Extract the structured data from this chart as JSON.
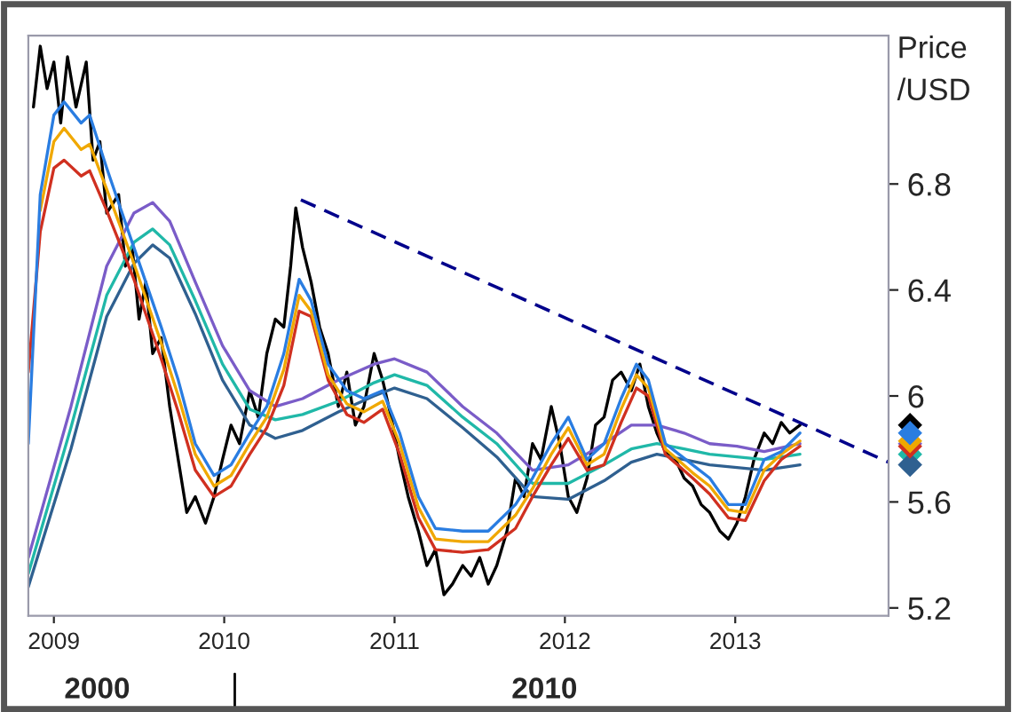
{
  "chart_data": {
    "type": "line",
    "ylabel": "Price\n/USD",
    "annotations": [
      "2000",
      "2010"
    ],
    "xlim": [
      2008.85,
      2013.9
    ],
    "ylim": [
      5.17,
      7.36
    ],
    "xticks": [
      2009,
      2010,
      2011,
      2012,
      2013
    ],
    "yticks": [
      5.2,
      5.6,
      {
        "value": 6.0,
        "label": "6"
      },
      6.4,
      6.8
    ],
    "grid": false,
    "legend": false,
    "marker": "none",
    "line_style": "solid",
    "series": [
      {
        "color": "#000000",
        "x": [
          2008.88,
          2008.92,
          2008.96,
          2009.0,
          2009.04,
          2009.08,
          2009.13,
          2009.19,
          2009.23,
          2009.27,
          2009.31,
          2009.38,
          2009.42,
          2009.46,
          2009.5,
          2009.54,
          2009.58,
          2009.63,
          2009.68,
          2009.73,
          2009.78,
          2009.83,
          2009.89,
          2009.94,
          2009.99,
          2010.04,
          2010.09,
          2010.15,
          2010.2,
          2010.25,
          2010.3,
          2010.35,
          2010.39,
          2010.42,
          2010.46,
          2010.51,
          2010.56,
          2010.61,
          2010.67,
          2010.72,
          2010.77,
          2010.82,
          2010.88,
          2010.93,
          2010.98,
          2011.03,
          2011.08,
          2011.14,
          2011.19,
          2011.24,
          2011.29,
          2011.34,
          2011.4,
          2011.45,
          2011.5,
          2011.55,
          2011.6,
          2011.66,
          2011.71,
          2011.76,
          2011.81,
          2011.86,
          2011.92,
          2011.97,
          2012.02,
          2012.07,
          2012.13,
          2012.18,
          2012.23,
          2012.28,
          2012.33,
          2012.39,
          2012.44,
          2012.49,
          2012.54,
          2012.59,
          2012.65,
          2012.7,
          2012.75,
          2012.8,
          2012.85,
          2012.91,
          2012.96,
          2013.01,
          2013.06,
          2013.11,
          2013.17,
          2013.22,
          2013.27,
          2013.32,
          2013.38
        ],
        "values": [
          7.09,
          7.32,
          7.16,
          7.26,
          7.03,
          7.28,
          7.09,
          7.26,
          6.89,
          6.96,
          6.69,
          6.76,
          6.49,
          6.56,
          6.29,
          6.43,
          6.16,
          6.22,
          5.96,
          5.76,
          5.56,
          5.62,
          5.52,
          5.62,
          5.76,
          5.89,
          5.82,
          6.02,
          5.92,
          6.16,
          6.29,
          6.26,
          6.49,
          6.71,
          6.56,
          6.43,
          6.26,
          6.16,
          5.96,
          6.09,
          5.89,
          5.96,
          6.16,
          6.06,
          5.92,
          5.76,
          5.62,
          5.49,
          5.36,
          5.42,
          5.25,
          5.29,
          5.36,
          5.32,
          5.39,
          5.29,
          5.36,
          5.49,
          5.69,
          5.62,
          5.82,
          5.76,
          5.96,
          5.82,
          5.62,
          5.56,
          5.69,
          5.89,
          5.92,
          6.06,
          6.09,
          6.02,
          6.12,
          5.96,
          5.86,
          5.79,
          5.76,
          5.69,
          5.66,
          5.59,
          5.56,
          5.49,
          5.46,
          5.52,
          5.62,
          5.76,
          5.86,
          5.82,
          5.9,
          5.86,
          5.89
        ]
      },
      {
        "color": "#7a5cc8",
        "x": [
          2008.85,
          2009.1,
          2009.31,
          2009.47,
          2009.58,
          2009.68,
          2009.83,
          2009.99,
          2010.15,
          2010.3,
          2010.46,
          2010.67,
          2010.88,
          2011.0,
          2011.19,
          2011.4,
          2011.6,
          2011.81,
          2012.02,
          2012.23,
          2012.39,
          2012.54,
          2012.7,
          2012.85,
          2013.01,
          2013.17,
          2013.38
        ],
        "values": [
          5.39,
          5.96,
          6.49,
          6.69,
          6.73,
          6.66,
          6.43,
          6.19,
          6.02,
          5.96,
          5.99,
          6.06,
          6.12,
          6.14,
          6.09,
          5.96,
          5.86,
          5.72,
          5.74,
          5.82,
          5.89,
          5.89,
          5.86,
          5.82,
          5.81,
          5.79,
          5.82
        ]
      },
      {
        "color": "#20b8a8",
        "x": [
          2008.85,
          2009.1,
          2009.31,
          2009.47,
          2009.58,
          2009.68,
          2009.83,
          2009.99,
          2010.15,
          2010.3,
          2010.46,
          2010.67,
          2010.88,
          2011.0,
          2011.19,
          2011.4,
          2011.6,
          2011.81,
          2012.02,
          2012.23,
          2012.39,
          2012.54,
          2012.7,
          2012.85,
          2013.01,
          2013.17,
          2013.38
        ],
        "values": [
          5.33,
          5.88,
          6.38,
          6.58,
          6.63,
          6.57,
          6.36,
          6.12,
          5.95,
          5.91,
          5.93,
          5.98,
          6.05,
          6.08,
          6.04,
          5.92,
          5.82,
          5.67,
          5.67,
          5.74,
          5.8,
          5.82,
          5.8,
          5.78,
          5.77,
          5.76,
          5.78
        ]
      },
      {
        "color": "#2f6090",
        "x": [
          2008.85,
          2009.1,
          2009.31,
          2009.47,
          2009.58,
          2009.68,
          2009.83,
          2009.99,
          2010.15,
          2010.3,
          2010.46,
          2010.67,
          2010.88,
          2011.0,
          2011.19,
          2011.4,
          2011.6,
          2011.81,
          2012.02,
          2012.23,
          2012.39,
          2012.54,
          2012.7,
          2012.85,
          2013.01,
          2013.17,
          2013.38
        ],
        "values": [
          5.28,
          5.8,
          6.3,
          6.5,
          6.57,
          6.52,
          6.31,
          6.06,
          5.89,
          5.84,
          5.87,
          5.94,
          6.0,
          6.03,
          5.99,
          5.88,
          5.77,
          5.62,
          5.61,
          5.68,
          5.75,
          5.78,
          5.76,
          5.74,
          5.73,
          5.72,
          5.74
        ]
      },
      {
        "color": "#d03020",
        "x": [
          2008.85,
          2008.92,
          2009.0,
          2009.06,
          2009.16,
          2009.21,
          2009.31,
          2009.47,
          2009.63,
          2009.73,
          2009.83,
          2009.94,
          2010.04,
          2010.15,
          2010.25,
          2010.35,
          2010.44,
          2010.51,
          2010.61,
          2010.72,
          2010.82,
          2010.93,
          2011.03,
          2011.14,
          2011.24,
          2011.4,
          2011.55,
          2011.71,
          2011.81,
          2011.92,
          2012.02,
          2012.13,
          2012.23,
          2012.33,
          2012.42,
          2012.49,
          2012.59,
          2012.75,
          2012.85,
          2012.96,
          2013.06,
          2013.17,
          2013.27,
          2013.38
        ],
        "values": [
          6.09,
          6.62,
          6.86,
          6.89,
          6.83,
          6.85,
          6.7,
          6.44,
          6.14,
          5.94,
          5.72,
          5.62,
          5.66,
          5.78,
          5.88,
          6.04,
          6.32,
          6.3,
          6.06,
          5.93,
          5.9,
          5.95,
          5.78,
          5.54,
          5.42,
          5.41,
          5.42,
          5.5,
          5.62,
          5.74,
          5.84,
          5.72,
          5.74,
          5.9,
          6.03,
          6.0,
          5.78,
          5.69,
          5.63,
          5.54,
          5.53,
          5.68,
          5.76,
          5.81
        ]
      },
      {
        "color": "#f0a800",
        "x": [
          2008.92,
          2009.0,
          2009.06,
          2009.16,
          2009.21,
          2009.31,
          2009.47,
          2009.63,
          2009.73,
          2009.83,
          2009.94,
          2010.04,
          2010.15,
          2010.25,
          2010.35,
          2010.44,
          2010.51,
          2010.61,
          2010.72,
          2010.82,
          2010.93,
          2011.03,
          2011.14,
          2011.24,
          2011.4,
          2011.55,
          2011.71,
          2011.81,
          2011.92,
          2012.02,
          2012.13,
          2012.23,
          2012.33,
          2012.42,
          2012.49,
          2012.59,
          2012.75,
          2012.85,
          2012.96,
          2013.06,
          2013.17,
          2013.27,
          2013.38
        ],
        "values": [
          6.7,
          6.96,
          7.01,
          6.93,
          6.95,
          6.78,
          6.5,
          6.2,
          6.0,
          5.78,
          5.66,
          5.7,
          5.82,
          5.92,
          6.1,
          6.38,
          6.32,
          6.08,
          5.97,
          5.94,
          5.98,
          5.82,
          5.58,
          5.46,
          5.45,
          5.45,
          5.55,
          5.65,
          5.78,
          5.88,
          5.74,
          5.78,
          5.95,
          6.08,
          6.03,
          5.8,
          5.71,
          5.66,
          5.57,
          5.56,
          5.72,
          5.78,
          5.83
        ]
      },
      {
        "color": "#2a7de1",
        "x": [
          2008.85,
          2008.92,
          2009.0,
          2009.06,
          2009.16,
          2009.21,
          2009.31,
          2009.47,
          2009.63,
          2009.73,
          2009.83,
          2009.94,
          2010.04,
          2010.15,
          2010.25,
          2010.35,
          2010.44,
          2010.51,
          2010.61,
          2010.72,
          2010.82,
          2010.93,
          2011.03,
          2011.14,
          2011.24,
          2011.4,
          2011.55,
          2011.71,
          2011.81,
          2011.92,
          2012.02,
          2012.13,
          2012.23,
          2012.33,
          2012.42,
          2012.49,
          2012.59,
          2012.75,
          2012.85,
          2012.96,
          2013.06,
          2013.17,
          2013.27,
          2013.38
        ],
        "values": [
          5.82,
          6.76,
          7.06,
          7.11,
          7.03,
          7.06,
          6.86,
          6.56,
          6.26,
          6.06,
          5.82,
          5.7,
          5.74,
          5.86,
          5.96,
          6.16,
          6.44,
          6.36,
          6.12,
          6.02,
          5.99,
          6.02,
          5.86,
          5.62,
          5.5,
          5.49,
          5.49,
          5.59,
          5.69,
          5.82,
          5.92,
          5.76,
          5.82,
          5.99,
          6.12,
          6.06,
          5.82,
          5.74,
          5.69,
          5.59,
          5.59,
          5.76,
          5.79,
          5.86
        ]
      },
      {
        "color": "#00008b",
        "line_style": "dashed",
        "x": [
          2010.45,
          2013.9
        ],
        "values": [
          6.74,
          5.75
        ]
      }
    ]
  }
}
